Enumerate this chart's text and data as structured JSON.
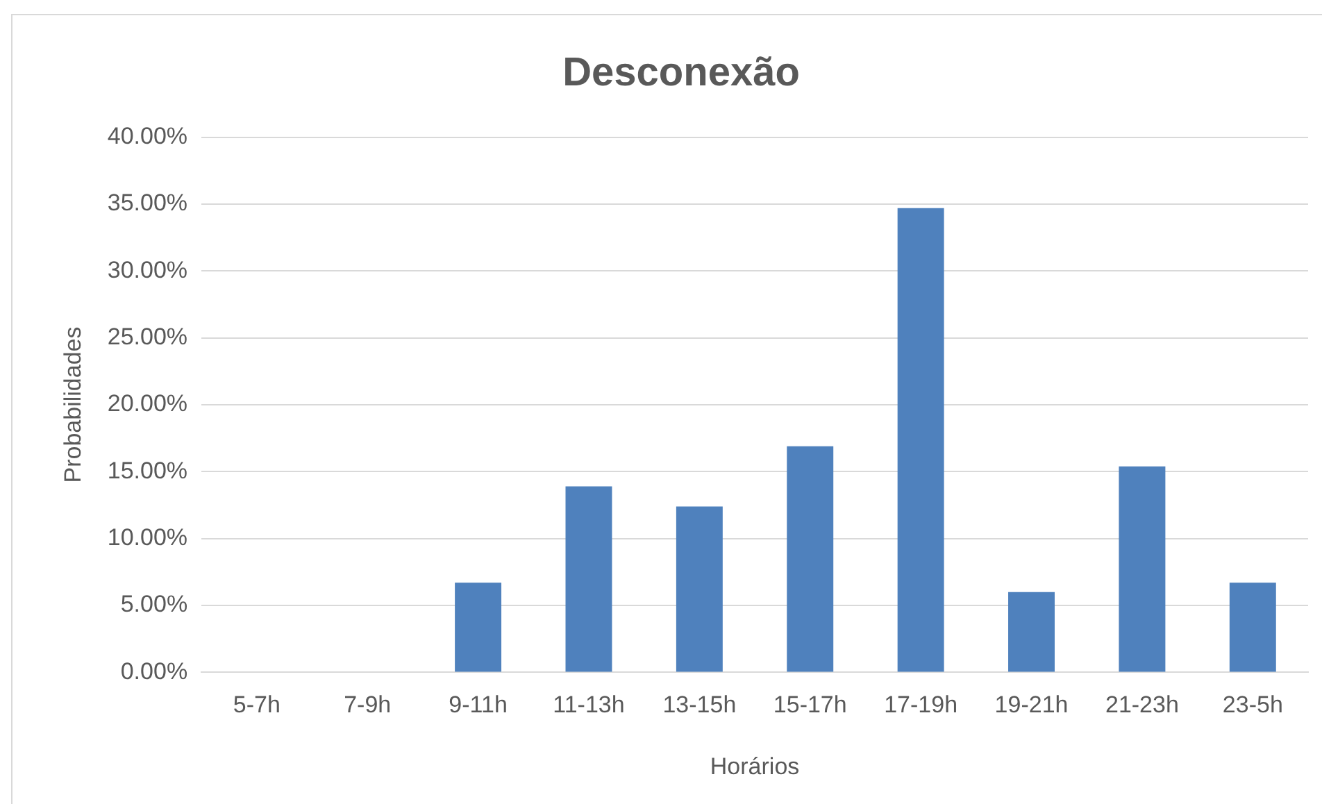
{
  "chart_data": {
    "type": "bar",
    "title": "Desconexão",
    "xlabel": "Horários",
    "ylabel": "Probabilidades",
    "categories": [
      "5-7h",
      "7-9h",
      "9-11h",
      "11-13h",
      "13-15h",
      "15-17h",
      "17-19h",
      "19-21h",
      "21-23h",
      "23-5h"
    ],
    "values": [
      0,
      0,
      6.7,
      13.9,
      12.4,
      16.9,
      34.7,
      6.0,
      15.4,
      6.7
    ],
    "color": "#4f81bd",
    "ylim": [
      0,
      40
    ],
    "yticks": [
      {
        "value": 0,
        "label": "0.00%"
      },
      {
        "value": 5,
        "label": "5.00%"
      },
      {
        "value": 10,
        "label": "10.00%"
      },
      {
        "value": 15,
        "label": "15.00%"
      },
      {
        "value": 20,
        "label": "20.00%"
      },
      {
        "value": 25,
        "label": "25.00%"
      },
      {
        "value": 30,
        "label": "30.00%"
      },
      {
        "value": 35,
        "label": "35.00%"
      },
      {
        "value": 40,
        "label": "40.00%"
      }
    ],
    "grid": "y",
    "legend": false
  }
}
